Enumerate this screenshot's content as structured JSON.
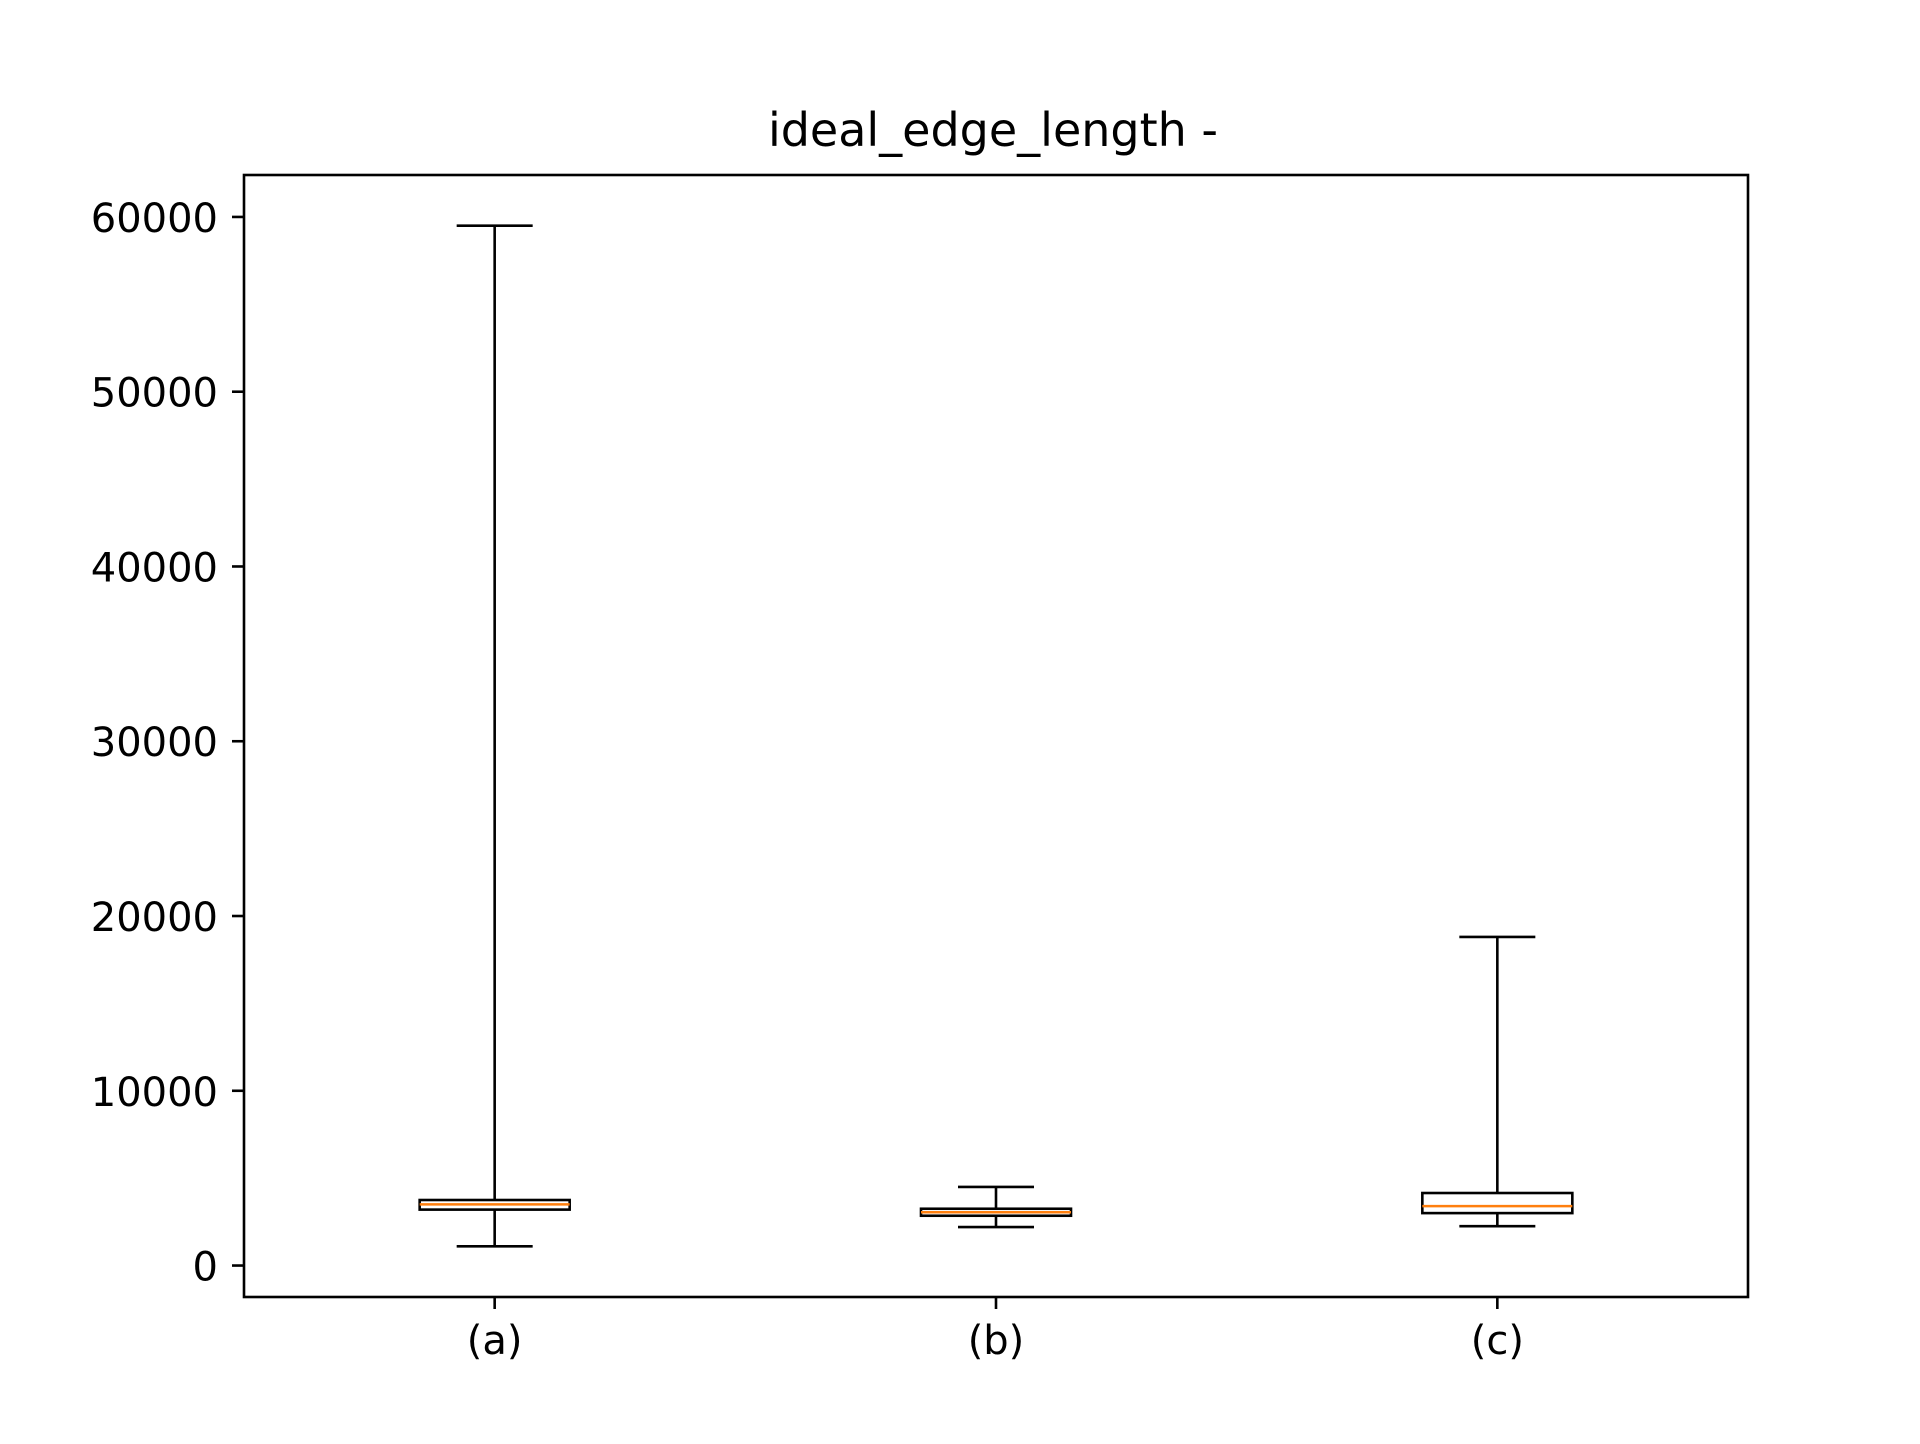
{
  "chart_data": {
    "type": "box",
    "title": "ideal_edge_length -",
    "xlabel": "",
    "ylabel": "",
    "categories": [
      "(a)",
      "(b)",
      "(c)"
    ],
    "boxes": [
      {
        "category": "(a)",
        "whisker_low": 1100,
        "q1": 3200,
        "median": 3500,
        "q3": 3750,
        "whisker_high": 59500
      },
      {
        "category": "(b)",
        "whisker_low": 2200,
        "q1": 2850,
        "median": 3050,
        "q3": 3250,
        "whisker_high": 4500
      },
      {
        "category": "(c)",
        "whisker_low": 2250,
        "q1": 3000,
        "median": 3400,
        "q3": 4150,
        "whisker_high": 18800
      }
    ],
    "ylim": [
      -1800,
      62400
    ],
    "yticks": [
      0,
      10000,
      20000,
      30000,
      40000,
      50000,
      60000
    ],
    "ytick_labels": [
      "0",
      "10000",
      "20000",
      "30000",
      "40000",
      "50000",
      "60000"
    ],
    "grid": false,
    "colors": {
      "median": "#ff7f0e",
      "box_edge": "#000000",
      "axes": "#000000"
    }
  }
}
